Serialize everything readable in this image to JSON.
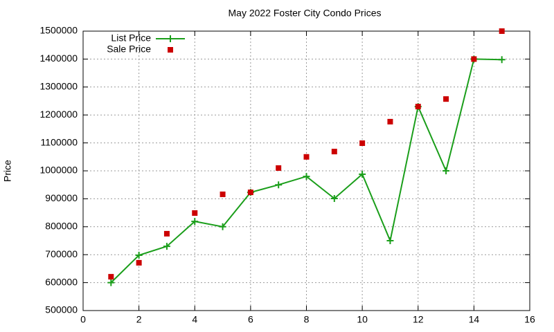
{
  "chart_data": {
    "type": "line",
    "title": "May 2022 Foster City Condo Prices",
    "ylabel": "Price",
    "x": [
      1,
      2,
      3,
      4,
      5,
      6,
      7,
      8,
      9,
      10,
      11,
      12,
      13,
      14,
      15
    ],
    "series": [
      {
        "name": "List Price",
        "color": "#1a9e1a",
        "style": "linespoints",
        "marker": "plus",
        "values": [
          600000,
          698000,
          730000,
          819000,
          800000,
          923000,
          950000,
          980000,
          901000,
          988000,
          750000,
          1230000,
          1000000,
          1400000,
          1398000
        ]
      },
      {
        "name": "Sale Price",
        "color": "#cc0000",
        "style": "points",
        "marker": "square",
        "values": [
          621000,
          671000,
          775000,
          849000,
          916000,
          923000,
          1010000,
          1050000,
          1069000,
          1099000,
          1176000,
          1230000,
          1257000,
          1400000,
          1500000
        ]
      }
    ],
    "xlim": [
      0,
      16
    ],
    "xticks": [
      0,
      2,
      4,
      6,
      8,
      10,
      12,
      14,
      16
    ],
    "ylim": [
      500000,
      1500000
    ],
    "yticks": [
      500000,
      600000,
      700000,
      800000,
      900000,
      1000000,
      1100000,
      1200000,
      1300000,
      1400000,
      1500000
    ],
    "grid": true,
    "legend": "top-left"
  }
}
